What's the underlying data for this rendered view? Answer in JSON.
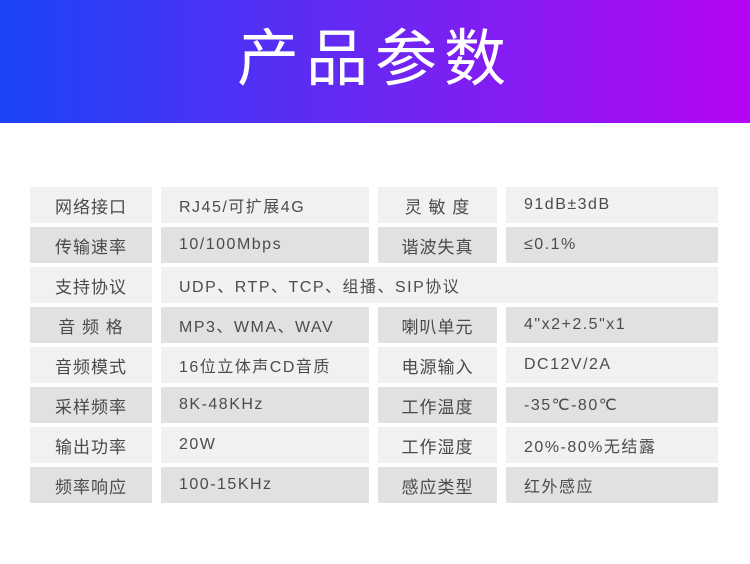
{
  "banner": {
    "title": "产品参数",
    "gradient_left": "#1b44f6",
    "gradient_right": "#b505f5",
    "title_color": "#ffffff"
  },
  "colors": {
    "row_light": "#f1f1f1",
    "row_dark": "#e1e1e1",
    "text": "#4a4a4a"
  },
  "table": {
    "rows": [
      {
        "label1": "网络接口",
        "value1": "RJ45/可扩展4G",
        "label2": "灵 敏 度",
        "value2": "91dB±3dB"
      },
      {
        "label1": "传输速率",
        "value1": "10/100Mbps",
        "label2": "谐波失真",
        "value2": "≤0.1%"
      },
      {
        "label1": "支持协议",
        "value1": "UDP、RTP、TCP、组播、SIP协议"
      },
      {
        "label1": "音 频 格",
        "value1": "MP3、WMA、WAV",
        "label2": "喇叭单元",
        "value2": "4\"x2+2.5\"x1"
      },
      {
        "label1": "音频模式",
        "value1": "16位立体声CD音质",
        "label2": "电源输入",
        "value2": "DC12V/2A"
      },
      {
        "label1": "采样频率",
        "value1": "8K-48KHz",
        "label2": "工作温度",
        "value2": "-35℃-80℃"
      },
      {
        "label1": "输出功率",
        "value1": "20W",
        "label2": "工作湿度",
        "value2": "20%-80%无结露"
      },
      {
        "label1": "频率响应",
        "value1": "100-15KHz",
        "label2": "感应类型",
        "value2": "红外感应"
      }
    ]
  }
}
